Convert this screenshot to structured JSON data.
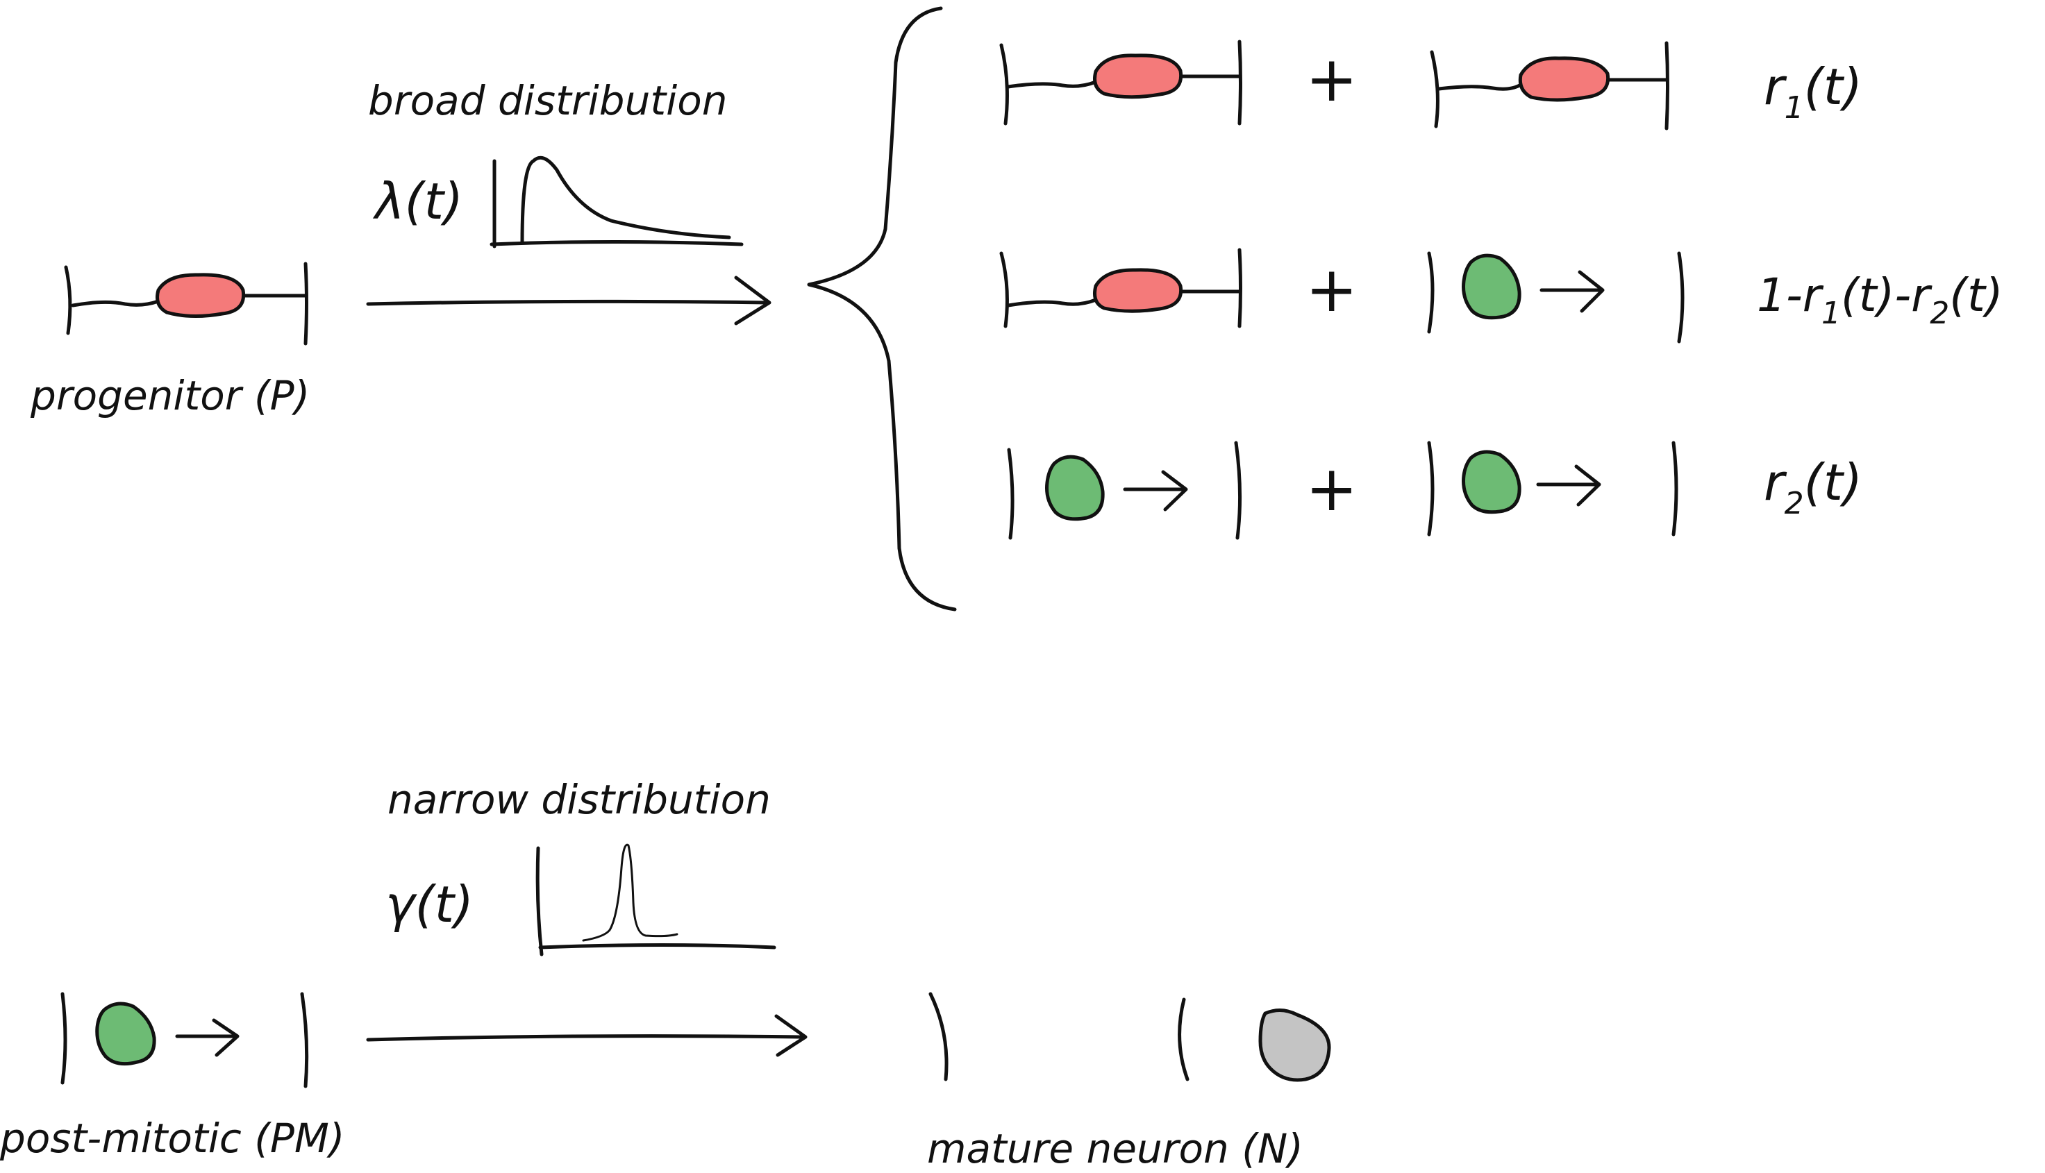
{
  "labels": {
    "progenitor": "progenitor (P)",
    "post_mitotic": "post-mitotic (PM)",
    "mature_neuron": "mature neuron (N)",
    "broad": "broad distribution",
    "narrow": "narrow distribution",
    "lambda": "λ(t)",
    "gamma": "γ(t)"
  },
  "outcomes": [
    {
      "base": "r",
      "sub": "1",
      "tail": "(t)"
    },
    {
      "p1": "1-r",
      "s1": "1",
      "p2": "(t)-r",
      "s2": "2",
      "p3": "(t)"
    },
    {
      "base": "r",
      "sub": "2",
      "tail": "(t)"
    }
  ],
  "plus_sign": "+",
  "colors": {
    "progenitor_nucleus": "#f47a7a",
    "post_mitotic_nucleus": "#6dbb74",
    "mature_nucleus": "#c4c4c4",
    "ink": "#111111"
  }
}
